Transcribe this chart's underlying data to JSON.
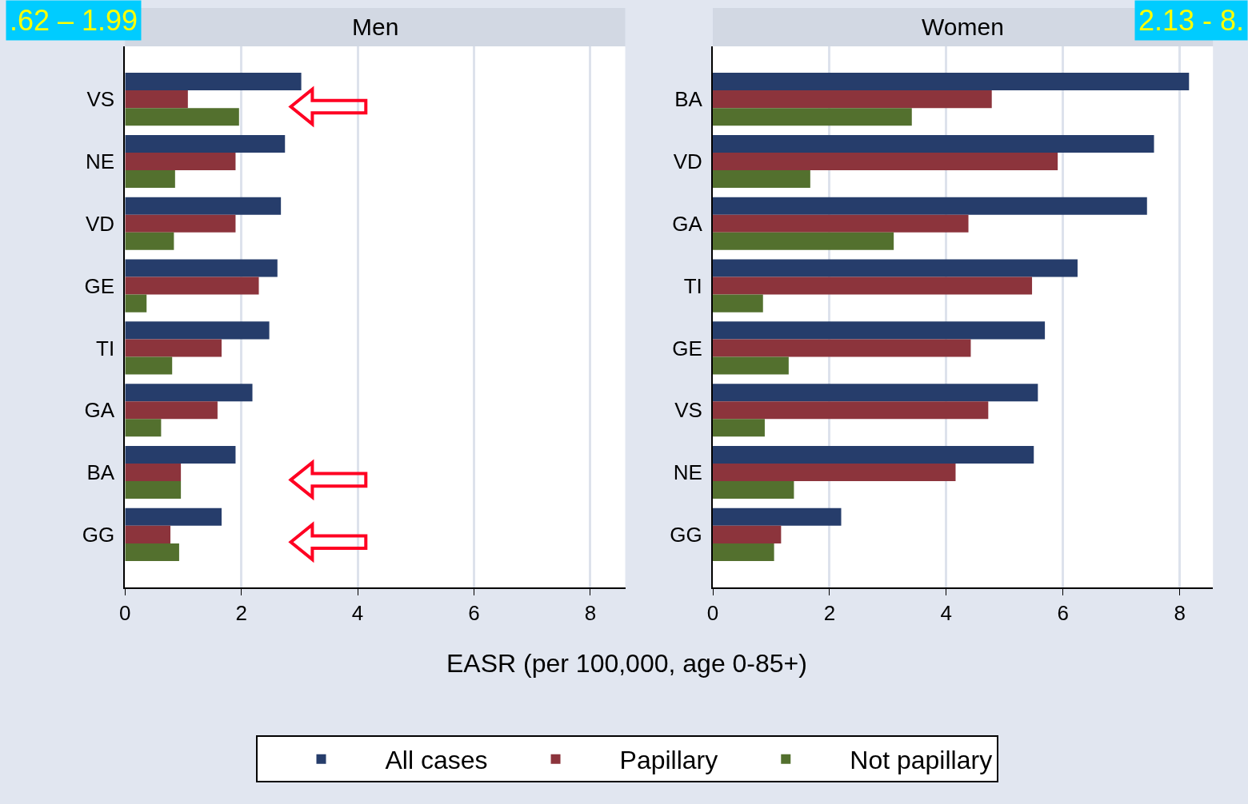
{
  "chart_data": [
    {
      "type": "bar",
      "orientation": "horizontal",
      "title": "Men",
      "xlabel": "EASR (per 100,000, age 0-85+)",
      "annotations": [
        ".62 – 1.99"
      ],
      "categories": [
        "VS",
        "NE",
        "VD",
        "GE",
        "TI",
        "GA",
        "BA",
        "GG"
      ],
      "series": [
        {
          "name": "All cases",
          "color": "#263d6b",
          "values": [
            3.03,
            2.75,
            2.68,
            2.62,
            2.48,
            2.19,
            1.9,
            1.66
          ]
        },
        {
          "name": "Papillary",
          "color": "#8c343c",
          "values": [
            1.08,
            1.9,
            1.9,
            2.3,
            1.66,
            1.59,
            0.96,
            0.78
          ]
        },
        {
          "name": "Not papillary",
          "color": "#53702e",
          "values": [
            1.96,
            0.86,
            0.84,
            0.37,
            0.81,
            0.62,
            0.96,
            0.93
          ]
        }
      ],
      "xlim": [
        0,
        8.6
      ],
      "xticks": [
        0,
        2,
        4,
        6,
        8
      ],
      "grid": "x",
      "legend": "bottom"
    },
    {
      "type": "bar",
      "orientation": "horizontal",
      "title": "Women",
      "annotations": [
        "2.13 - 8."
      ],
      "categories": [
        "BA",
        "VD",
        "GA",
        "TI",
        "GE",
        "VS",
        "NE",
        "GG"
      ],
      "series": [
        {
          "name": "All cases",
          "color": "#263d6b",
          "values": [
            8.16,
            7.56,
            7.44,
            6.25,
            5.69,
            5.57,
            5.5,
            2.2
          ]
        },
        {
          "name": "Papillary",
          "color": "#8c343c",
          "values": [
            4.78,
            5.91,
            4.38,
            5.47,
            4.42,
            4.72,
            4.16,
            1.17
          ]
        },
        {
          "name": "Not papillary",
          "color": "#53702e",
          "values": [
            3.41,
            1.67,
            3.1,
            0.86,
            1.3,
            0.89,
            1.39,
            1.05
          ]
        }
      ],
      "xlim": [
        0,
        8.57
      ],
      "xticks": [
        0,
        2,
        4,
        6,
        8
      ],
      "grid": "x",
      "legend": "bottom"
    }
  ]
}
